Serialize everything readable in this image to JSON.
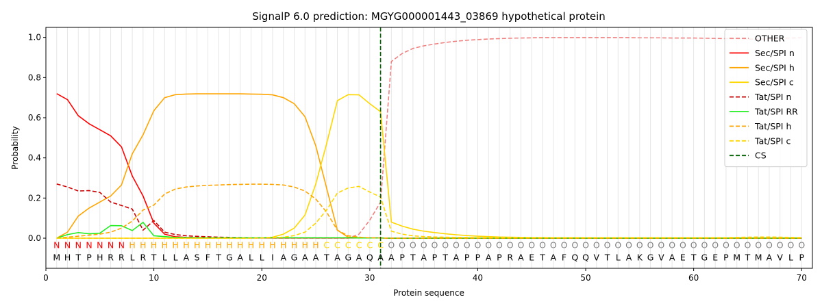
{
  "chart_data": {
    "type": "line",
    "title": "SignalP 6.0 prediction: MGYG000001443_03869 hypothetical protein",
    "xlabel": "Protein sequence",
    "ylabel": "Probability",
    "xlim": [
      0,
      71
    ],
    "ylim": [
      -0.15,
      1.05
    ],
    "x_ticks": [
      0,
      10,
      20,
      30,
      40,
      50,
      60,
      70
    ],
    "y_ticks": [
      0.0,
      0.2,
      0.4,
      0.6,
      0.8,
      1.0
    ],
    "grid": "vertical lines at every residue",
    "legend_position": "top-right",
    "sequence": [
      "M",
      "H",
      "T",
      "P",
      "H",
      "R",
      "R",
      "L",
      "R",
      "T",
      "L",
      "L",
      "A",
      "S",
      "F",
      "T",
      "G",
      "A",
      "L",
      "L",
      "I",
      "A",
      "G",
      "A",
      "A",
      "T",
      "A",
      "G",
      "A",
      "Q",
      "A",
      "A",
      "P",
      "T",
      "A",
      "P",
      "T",
      "A",
      "P",
      "P",
      "A",
      "P",
      "R",
      "A",
      "E",
      "T",
      "A",
      "F",
      "Q",
      "Q",
      "V",
      "T",
      "L",
      "A",
      "K",
      "G",
      "V",
      "A",
      "E",
      "T",
      "G",
      "E",
      "P",
      "M",
      "T",
      "M",
      "A",
      "V",
      "L",
      "P"
    ],
    "region_labels": [
      "N",
      "N",
      "N",
      "N",
      "N",
      "N",
      "N",
      "H",
      "H",
      "H",
      "H",
      "H",
      "H",
      "H",
      "H",
      "H",
      "H",
      "H",
      "H",
      "H",
      "H",
      "H",
      "H",
      "H",
      "H",
      "C",
      "C",
      "C",
      "C",
      "C",
      "C",
      "O",
      "O",
      "O",
      "O",
      "O",
      "O",
      "O",
      "O",
      "O",
      "O",
      "O",
      "O",
      "O",
      "O",
      "O",
      "O",
      "O",
      "O",
      "O",
      "O",
      "O",
      "O",
      "O",
      "O",
      "O",
      "O",
      "O",
      "O",
      "O",
      "O",
      "O",
      "O",
      "O",
      "O",
      "O",
      "O",
      "O",
      "O",
      "O"
    ],
    "region_colors": {
      "N": "#ff0000",
      "H": "#ffa500",
      "C": "#ffd700",
      "O": "#808080"
    },
    "cs_position": 31,
    "series": [
      {
        "name": "OTHER",
        "color": "#f08080",
        "dash": "dashed",
        "values": [
          0.0,
          0.0,
          0.0,
          0.0,
          0.0,
          0.0,
          0.0,
          0.0,
          0.0,
          0.0,
          0.0,
          0.0,
          0.0,
          0.0,
          0.0,
          0.0,
          0.0,
          0.0,
          0.0,
          0.0,
          0.0,
          0.0,
          0.0,
          0.0,
          0.0,
          0.0,
          0.0,
          0.0,
          0.02,
          0.09,
          0.18,
          0.88,
          0.92,
          0.945,
          0.958,
          0.967,
          0.975,
          0.981,
          0.986,
          0.989,
          0.992,
          0.994,
          0.996,
          0.997,
          0.998,
          0.999,
          0.999,
          0.999,
          0.999,
          0.999,
          0.999,
          0.999,
          0.999,
          0.999,
          0.998,
          0.998,
          0.998,
          0.997,
          0.997,
          0.997,
          0.996,
          0.995,
          0.994,
          0.993,
          0.992,
          0.991,
          0.993,
          0.995,
          0.997,
          0.998
        ]
      },
      {
        "name": "Sec/SPI n",
        "color": "#ff0000",
        "dash": "solid",
        "values": [
          0.72,
          0.69,
          0.61,
          0.57,
          0.54,
          0.51,
          0.455,
          0.31,
          0.21,
          0.075,
          0.02,
          0.007,
          0.004,
          0.003,
          0.002,
          0.002,
          0.001,
          0.001,
          0.001,
          0.001,
          0.001,
          0.001,
          0.001,
          0.001,
          0.001,
          0.001,
          0.001,
          0.001,
          0.001,
          0.001,
          0.001,
          0.0,
          0.0,
          0.0,
          0.0,
          0.0,
          0.0,
          0.0,
          0.0,
          0.0,
          0.0,
          0.0,
          0.0,
          0.0,
          0.0,
          0.0,
          0.0,
          0.0,
          0.0,
          0.0,
          0.0,
          0.0,
          0.0,
          0.0,
          0.0,
          0.0,
          0.0,
          0.0,
          0.0,
          0.0,
          0.0,
          0.0,
          0.0,
          0.0,
          0.0,
          0.0,
          0.0,
          0.0,
          0.0,
          0.0
        ]
      },
      {
        "name": "Sec/SPI h",
        "color": "#ffa500",
        "dash": "solid",
        "values": [
          0.0,
          0.03,
          0.11,
          0.15,
          0.18,
          0.21,
          0.265,
          0.42,
          0.515,
          0.635,
          0.7,
          0.715,
          0.718,
          0.719,
          0.719,
          0.719,
          0.719,
          0.719,
          0.718,
          0.717,
          0.714,
          0.7,
          0.67,
          0.605,
          0.46,
          0.25,
          0.04,
          0.005,
          0.002,
          0.001,
          0.001,
          0.0,
          0.0,
          0.0,
          0.0,
          0.0,
          0.0,
          0.0,
          0.0,
          0.0,
          0.0,
          0.0,
          0.0,
          0.0,
          0.0,
          0.0,
          0.0,
          0.0,
          0.0,
          0.0,
          0.0,
          0.0,
          0.0,
          0.0,
          0.0,
          0.0,
          0.0,
          0.0,
          0.0,
          0.0,
          0.0,
          0.0,
          0.0,
          0.0,
          0.0,
          0.0,
          0.0,
          0.0,
          0.0,
          0.0
        ]
      },
      {
        "name": "Sec/SPI c",
        "color": "#ffd700",
        "dash": "solid",
        "values": [
          0.0,
          0.0,
          0.0,
          0.0,
          0.0,
          0.0,
          0.0,
          0.0,
          0.0,
          0.0,
          0.0,
          0.0,
          0.0,
          0.0,
          0.0,
          0.0,
          0.0,
          0.0,
          0.001,
          0.002,
          0.005,
          0.02,
          0.05,
          0.115,
          0.27,
          0.47,
          0.685,
          0.715,
          0.714,
          0.67,
          0.63,
          0.08,
          0.06,
          0.045,
          0.035,
          0.028,
          0.022,
          0.017,
          0.013,
          0.01,
          0.008,
          0.006,
          0.005,
          0.004,
          0.003,
          0.003,
          0.002,
          0.002,
          0.002,
          0.001,
          0.001,
          0.001,
          0.001,
          0.001,
          0.001,
          0.001,
          0.001,
          0.001,
          0.001,
          0.001,
          0.001,
          0.001,
          0.001,
          0.001,
          0.001,
          0.001,
          0.001,
          0.001,
          0.001,
          0.001
        ]
      },
      {
        "name": "Tat/SPI n",
        "color": "#cc0000",
        "dash": "dashed",
        "values": [
          0.27,
          0.255,
          0.235,
          0.237,
          0.228,
          0.18,
          0.163,
          0.145,
          0.04,
          0.088,
          0.03,
          0.018,
          0.012,
          0.009,
          0.007,
          0.005,
          0.004,
          0.003,
          0.002,
          0.002,
          0.002,
          0.002,
          0.002,
          0.002,
          0.002,
          0.002,
          0.002,
          0.002,
          0.001,
          0.001,
          0.001,
          0.0,
          0.0,
          0.0,
          0.0,
          0.0,
          0.0,
          0.0,
          0.0,
          0.0,
          0.0,
          0.0,
          0.0,
          0.0,
          0.0,
          0.0,
          0.0,
          0.0,
          0.0,
          0.0,
          0.0,
          0.0,
          0.0,
          0.0,
          0.0,
          0.0,
          0.0,
          0.0,
          0.0,
          0.0,
          0.0,
          0.0,
          0.0,
          0.0,
          0.0,
          0.0,
          0.0,
          0.0,
          0.0,
          0.0
        ]
      },
      {
        "name": "Tat/SPI RR",
        "color": "#22ee22",
        "dash": "solid",
        "values": [
          0.0,
          0.018,
          0.028,
          0.022,
          0.025,
          0.063,
          0.062,
          0.038,
          0.079,
          0.012,
          0.008,
          0.004,
          0.003,
          0.002,
          0.002,
          0.002,
          0.002,
          0.002,
          0.002,
          0.002,
          0.002,
          0.002,
          0.002,
          0.002,
          0.002,
          0.002,
          0.002,
          0.002,
          0.001,
          0.001,
          0.001,
          0.0,
          0.0,
          0.0,
          0.0,
          0.0,
          0.0,
          0.0,
          0.0,
          0.0,
          0.0,
          0.0,
          0.0,
          0.0,
          0.0,
          0.0,
          0.0,
          0.0,
          0.0,
          0.0,
          0.0,
          0.0,
          0.0,
          0.0,
          0.0,
          0.0,
          0.0,
          0.0,
          0.0,
          0.0,
          0.0,
          0.0,
          0.0,
          0.0,
          0.0,
          0.0,
          0.0,
          0.0,
          0.0,
          0.0
        ]
      },
      {
        "name": "Tat/SPI h",
        "color": "#ffa500",
        "dash": "dashed",
        "values": [
          0.0,
          0.005,
          0.01,
          0.015,
          0.02,
          0.03,
          0.05,
          0.085,
          0.14,
          0.165,
          0.22,
          0.245,
          0.255,
          0.26,
          0.263,
          0.265,
          0.267,
          0.268,
          0.269,
          0.269,
          0.268,
          0.265,
          0.255,
          0.235,
          0.195,
          0.13,
          0.04,
          0.012,
          0.005,
          0.002,
          0.001,
          0.0,
          0.0,
          0.0,
          0.0,
          0.0,
          0.0,
          0.0,
          0.0,
          0.0,
          0.0,
          0.0,
          0.0,
          0.0,
          0.0,
          0.0,
          0.0,
          0.0,
          0.0,
          0.0,
          0.0,
          0.0,
          0.0,
          0.0,
          0.0,
          0.0,
          0.0,
          0.0,
          0.0,
          0.0,
          0.0,
          0.0,
          0.0,
          0.0,
          0.0,
          0.0,
          0.0,
          0.0,
          0.0,
          0.0
        ]
      },
      {
        "name": "Tat/SPI c",
        "color": "#ffd700",
        "dash": "dashed",
        "values": [
          0.0,
          0.0,
          0.0,
          0.0,
          0.0,
          0.0,
          0.0,
          0.0,
          0.0,
          0.0,
          0.0,
          0.0,
          0.0,
          0.0,
          0.0,
          0.0,
          0.0,
          0.0,
          0.0,
          0.001,
          0.002,
          0.005,
          0.013,
          0.03,
          0.075,
          0.14,
          0.225,
          0.25,
          0.258,
          0.23,
          0.205,
          0.035,
          0.02,
          0.012,
          0.008,
          0.006,
          0.005,
          0.004,
          0.004,
          0.003,
          0.003,
          0.003,
          0.003,
          0.003,
          0.003,
          0.003,
          0.003,
          0.003,
          0.003,
          0.003,
          0.003,
          0.003,
          0.003,
          0.003,
          0.003,
          0.003,
          0.003,
          0.003,
          0.003,
          0.003,
          0.003,
          0.003,
          0.003,
          0.004,
          0.005,
          0.006,
          0.006,
          0.005,
          0.004,
          0.003
        ]
      },
      {
        "name": "CS",
        "color": "#006400",
        "dash": "dashed",
        "values": []
      }
    ]
  }
}
